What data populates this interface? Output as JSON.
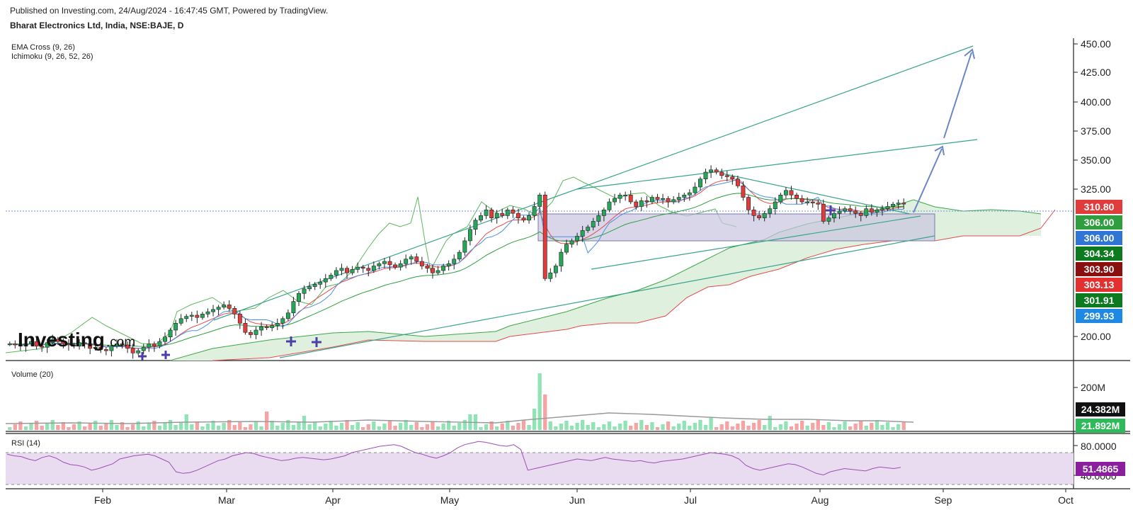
{
  "header": {
    "published": "Published on Investing.com, 24/Aug/2024 - 16:47:45 GMT, Powered by TradingView.",
    "symbol": "Bharat Electronics Ltd, India, NSE:BAJE, D"
  },
  "indicators": {
    "ema": "EMA Cross (9, 26)",
    "ichimoku": "Ichimoku (9, 26, 52, 26)",
    "volume": "Volume (20)",
    "rsi": "RSI (14)"
  },
  "logo": {
    "text": "Investing",
    "suffix": ".com"
  },
  "colors": {
    "up": "#26a65b",
    "down": "#e03c3c",
    "up_vol": "#8fe3b4",
    "down_vol": "#f5a3a3",
    "channel": "#3aa38c",
    "rsi": "#9c4fb5",
    "rsi_band": "#eadcf0",
    "arrow": "#6b86c8",
    "cloud": "#e3f2e3",
    "rect": "#c9c5e0"
  },
  "chart_data": [
    {
      "type": "candlestick",
      "title": "Bharat Electronics Ltd, India, NSE:BAJE, D",
      "y_ticks": [
        "450.00",
        "425.00",
        "400.00",
        "375.00",
        "350.00",
        "325.00",
        "200.00"
      ],
      "x_ticks": [
        "Feb",
        "Mar",
        "Apr",
        "May",
        "Jun",
        "Jul",
        "Aug",
        "Sep",
        "Oct"
      ],
      "price_labels": [
        {
          "value": "310.80",
          "color": "#e03c3c"
        },
        {
          "value": "306.00",
          "color": "#2e9e3e"
        },
        {
          "value": "306.00",
          "color": "#2f75d6"
        },
        {
          "value": "304.34",
          "color": "#0c7a1e"
        },
        {
          "value": "303.90",
          "color": "#8a1010"
        },
        {
          "value": "303.13",
          "color": "#e53030"
        },
        {
          "value": "301.91",
          "color": "#0c7a1e"
        },
        {
          "value": "299.93",
          "color": "#1e88e5"
        }
      ],
      "close_series": [
        188,
        187,
        186,
        188,
        190,
        186,
        185,
        189,
        192,
        190,
        188,
        187,
        186,
        189,
        188,
        184,
        185,
        183,
        182,
        186,
        188,
        187,
        184,
        180,
        182,
        185,
        188,
        186,
        190,
        194,
        200,
        206,
        210,
        212,
        213,
        211,
        214,
        216,
        218,
        220,
        222,
        219,
        214,
        206,
        198,
        196,
        200,
        203,
        202,
        204,
        206,
        210,
        215,
        225,
        232,
        236,
        238,
        240,
        242,
        245,
        248,
        252,
        254,
        250,
        253,
        255,
        254,
        252,
        256,
        258,
        260,
        257,
        255,
        258,
        262,
        264,
        260,
        256,
        254,
        250,
        252,
        256,
        258,
        262,
        268,
        278,
        288,
        296,
        300,
        305,
        298,
        302,
        300,
        305,
        302,
        298,
        296,
        300,
        308,
        318,
        245,
        250,
        256,
        268,
        275,
        278,
        282,
        287,
        290,
        295,
        300,
        305,
        312,
        315,
        318,
        318,
        312,
        308,
        313,
        312,
        316,
        314,
        315,
        312,
        314,
        316,
        318,
        320,
        325,
        332,
        338,
        340,
        338,
        335,
        334,
        332,
        326,
        316,
        305,
        300,
        298,
        302,
        306,
        312,
        318,
        322,
        318,
        315,
        312,
        312,
        311,
        310,
        295,
        298,
        302,
        304,
        306,
        304,
        302,
        300,
        306,
        303,
        305,
        306,
        308,
        310,
        311,
        310.8
      ],
      "annotations": {
        "channel_upper": [
          [
            300,
            448
          ],
          [
            1345,
            447
          ]
        ],
        "triangle_upper": [
          [
            800,
            320
          ],
          [
            1262,
            310
          ]
        ],
        "arrow_targets": [
          "375.00",
          "437.00"
        ]
      }
    },
    {
      "type": "bar",
      "title": "Volume (20)",
      "y_ticks": [
        "200M"
      ],
      "labels": [
        {
          "value": "24.382M",
          "color": "#111111"
        },
        {
          "value": "21.892M",
          "color": "#2fba5a"
        }
      ]
    },
    {
      "type": "line",
      "title": "RSI (14)",
      "y_ticks": [
        "80.0000",
        "40.0000"
      ],
      "bands": [
        70,
        30
      ],
      "current": {
        "value": "51.4865",
        "color": "#8a1e9e"
      },
      "values": [
        68,
        66,
        65,
        62,
        60,
        64,
        66,
        63,
        58,
        55,
        54,
        52,
        48,
        50,
        53,
        56,
        62,
        64,
        66,
        67,
        68,
        66,
        62,
        58,
        46,
        44,
        45,
        48,
        52,
        56,
        60,
        62,
        66,
        68,
        70,
        69,
        66,
        64,
        62,
        60,
        61,
        63,
        64,
        63,
        62,
        61,
        62,
        64,
        66,
        70,
        72,
        74,
        76,
        78,
        79,
        80,
        78,
        74,
        70,
        68,
        65,
        63,
        66,
        70,
        76,
        80,
        82,
        84,
        83,
        81,
        79,
        78,
        80,
        74,
        48,
        50,
        52,
        54,
        56,
        58,
        60,
        62,
        61,
        60,
        62,
        64,
        62,
        61,
        60,
        59,
        60,
        58,
        57,
        59,
        60,
        61,
        62,
        64,
        66,
        68,
        70,
        69,
        68,
        66,
        62,
        54,
        50,
        48,
        50,
        52,
        54,
        56,
        55,
        52,
        48,
        44,
        42,
        46,
        48,
        50,
        49,
        48,
        47,
        50,
        52,
        51,
        50,
        51.4865
      ]
    }
  ]
}
